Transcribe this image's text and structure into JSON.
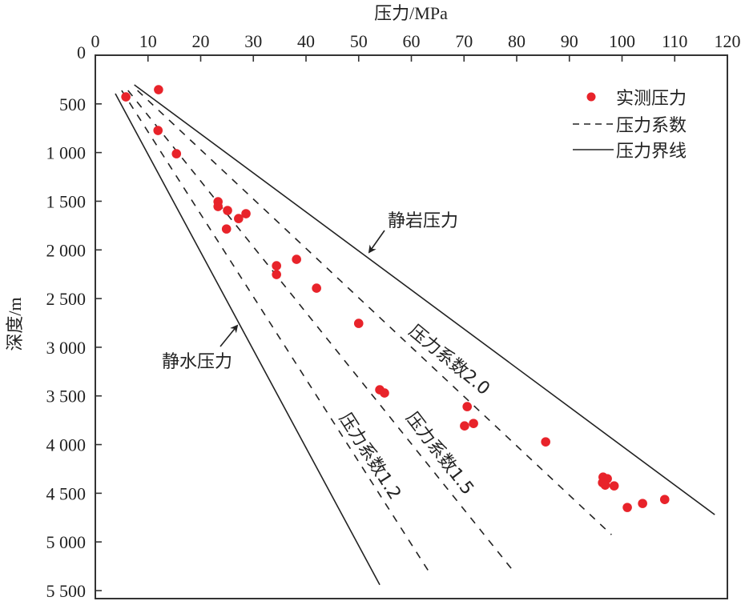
{
  "chart_data": {
    "type": "scatter",
    "title": "",
    "xlabel": "压力/MPa",
    "ylabel": "深度/m",
    "xlim": [
      0,
      120
    ],
    "ylim": [
      0,
      5500
    ],
    "y_inverted": true,
    "x_axis_position": "top",
    "grid": false,
    "x_ticks": [
      0,
      10,
      20,
      30,
      40,
      50,
      60,
      70,
      80,
      90,
      100,
      110,
      120
    ],
    "x_tick_labels": [
      "0",
      "10",
      "20",
      "30",
      "40",
      "50",
      "60",
      "70",
      "80",
      "90",
      "100",
      "110",
      "120"
    ],
    "y_ticks": [
      0,
      500,
      1000,
      1500,
      2000,
      2500,
      3000,
      3500,
      4000,
      4500,
      5000,
      5500
    ],
    "y_tick_labels": [
      "0",
      "500",
      "1 000",
      "1 500",
      "2 000",
      "2 500",
      "3 000",
      "3 500",
      "4 000",
      "4 500",
      "5 000",
      "5 500"
    ],
    "legend": {
      "placement": "top-right",
      "entries": [
        {
          "label": "实测压力",
          "style": "red-dot"
        },
        {
          "label": "压力系数",
          "style": "dashed"
        },
        {
          "label": "压力界线",
          "style": "solid"
        }
      ]
    },
    "series": [
      {
        "name": "实测压力",
        "kind": "scatter",
        "color": "#e8232a",
        "points": [
          [
            5.8,
            428
          ],
          [
            12.0,
            354
          ],
          [
            11.9,
            773
          ],
          [
            15.4,
            1012
          ],
          [
            23.3,
            1505
          ],
          [
            23.3,
            1554
          ],
          [
            25.1,
            1595
          ],
          [
            27.2,
            1678
          ],
          [
            28.6,
            1628
          ],
          [
            24.9,
            1785
          ],
          [
            34.4,
            2163
          ],
          [
            34.4,
            2253
          ],
          [
            38.2,
            2097
          ],
          [
            42.0,
            2393
          ],
          [
            50.0,
            2755
          ],
          [
            54.0,
            3437
          ],
          [
            54.9,
            3470
          ],
          [
            70.6,
            3610
          ],
          [
            70.1,
            3808
          ],
          [
            71.8,
            3783
          ],
          [
            85.5,
            3972
          ],
          [
            96.4,
            4334
          ],
          [
            97.2,
            4350
          ],
          [
            96.3,
            4391
          ],
          [
            96.8,
            4416
          ],
          [
            98.5,
            4424
          ],
          [
            101.0,
            4646
          ],
          [
            103.9,
            4605
          ],
          [
            108.1,
            4564
          ]
        ]
      },
      {
        "name": "静水压力",
        "kind": "solid-line",
        "points": [
          [
            3.8,
            395
          ],
          [
            54.0,
            5440
          ]
        ]
      },
      {
        "name": "静岩压力",
        "kind": "solid-line",
        "points": [
          [
            7.4,
            304
          ],
          [
            117.6,
            4720
          ]
        ]
      },
      {
        "name": "压力系数1.2",
        "kind": "dashed-line",
        "points": [
          [
            5.0,
            362
          ],
          [
            63.7,
            5337
          ]
        ]
      },
      {
        "name": "压力系数1.5",
        "kind": "dashed-line",
        "points": [
          [
            6.2,
            362
          ],
          [
            79.2,
            5288
          ]
        ]
      },
      {
        "name": "压力系数2.0",
        "kind": "dashed-line",
        "points": [
          [
            8.0,
            362
          ],
          [
            98.0,
            4926
          ]
        ]
      }
    ],
    "annotations": [
      {
        "text": "静岩压力",
        "arrow_to": [
          52,
          2030
        ]
      },
      {
        "text": "静水压力",
        "arrow_to": [
          26,
          2790
        ]
      },
      {
        "text": "压力系数2.0",
        "along": "压力系数2.0"
      },
      {
        "text": "压力系数1.5",
        "along": "压力系数1.5"
      },
      {
        "text": "压力系数1.2",
        "along": "压力系数1.2"
      }
    ]
  }
}
